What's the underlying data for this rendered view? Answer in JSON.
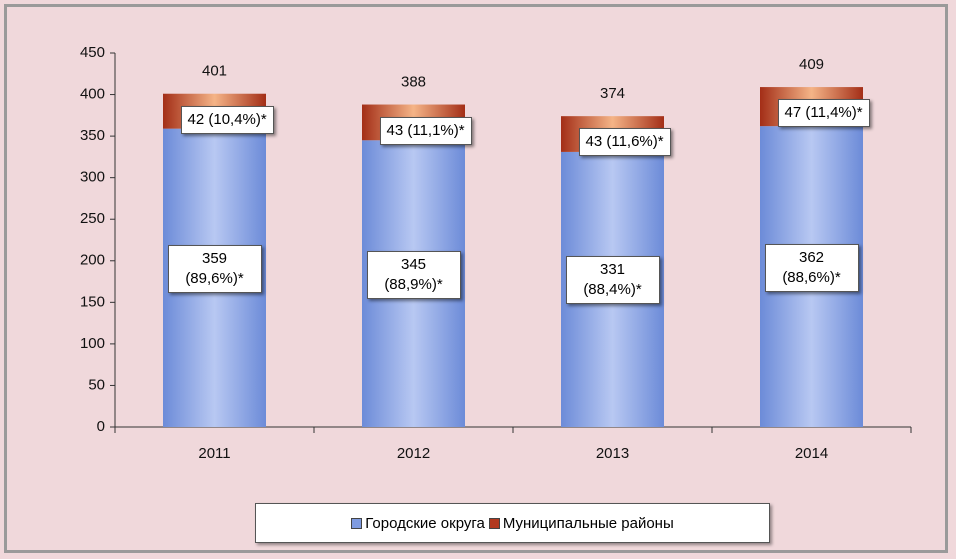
{
  "chart_data": {
    "type": "stacked_bar",
    "categories": [
      "2011",
      "2012",
      "2013",
      "2014"
    ],
    "series": [
      {
        "name": "Городские округа",
        "color": "#7f9be0",
        "values": [
          359,
          345,
          331,
          362
        ],
        "value_labels": [
          "359 (89,6%)*",
          "345 (88,9%)*",
          "331 (88,4%)*",
          "362 (88,6%)*"
        ]
      },
      {
        "name": "Муниципальные районы",
        "color": "#b2391f",
        "values": [
          42,
          43,
          43,
          47
        ],
        "value_labels": [
          "42 (10,4%)*",
          "43 (11,1%)*",
          "43 (11,6%)*",
          "47 (11,4%)*"
        ]
      }
    ],
    "totals": [
      401,
      388,
      374,
      409
    ],
    "ylim": [
      0,
      450
    ],
    "yticks": [
      0,
      50,
      100,
      150,
      200,
      250,
      300,
      350,
      400,
      450
    ],
    "grid": false,
    "legend": "bottom"
  }
}
